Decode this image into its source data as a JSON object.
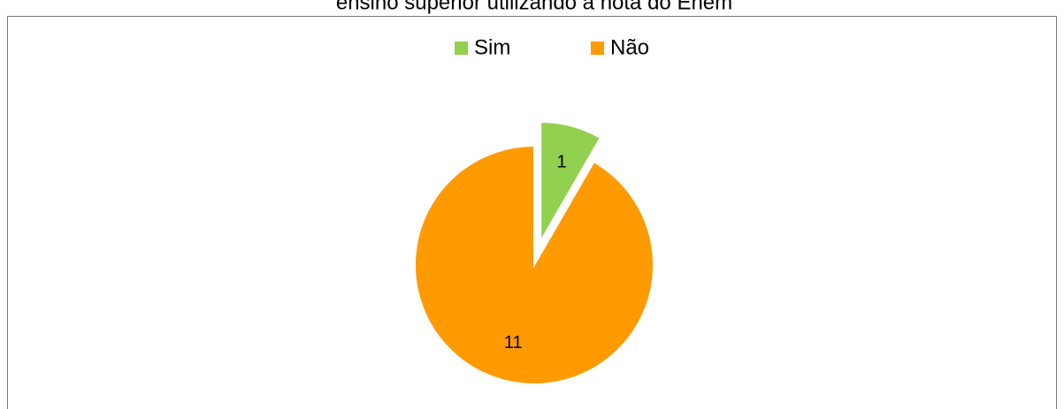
{
  "chart_data": {
    "type": "pie",
    "title": "ensino superior utilizando a nota do Enem",
    "categories": [
      "Sim",
      "Não"
    ],
    "values": [
      1,
      11
    ],
    "colors": [
      "#92d050",
      "#ff9a00"
    ],
    "explode": [
      true,
      false
    ],
    "legend": "top"
  }
}
